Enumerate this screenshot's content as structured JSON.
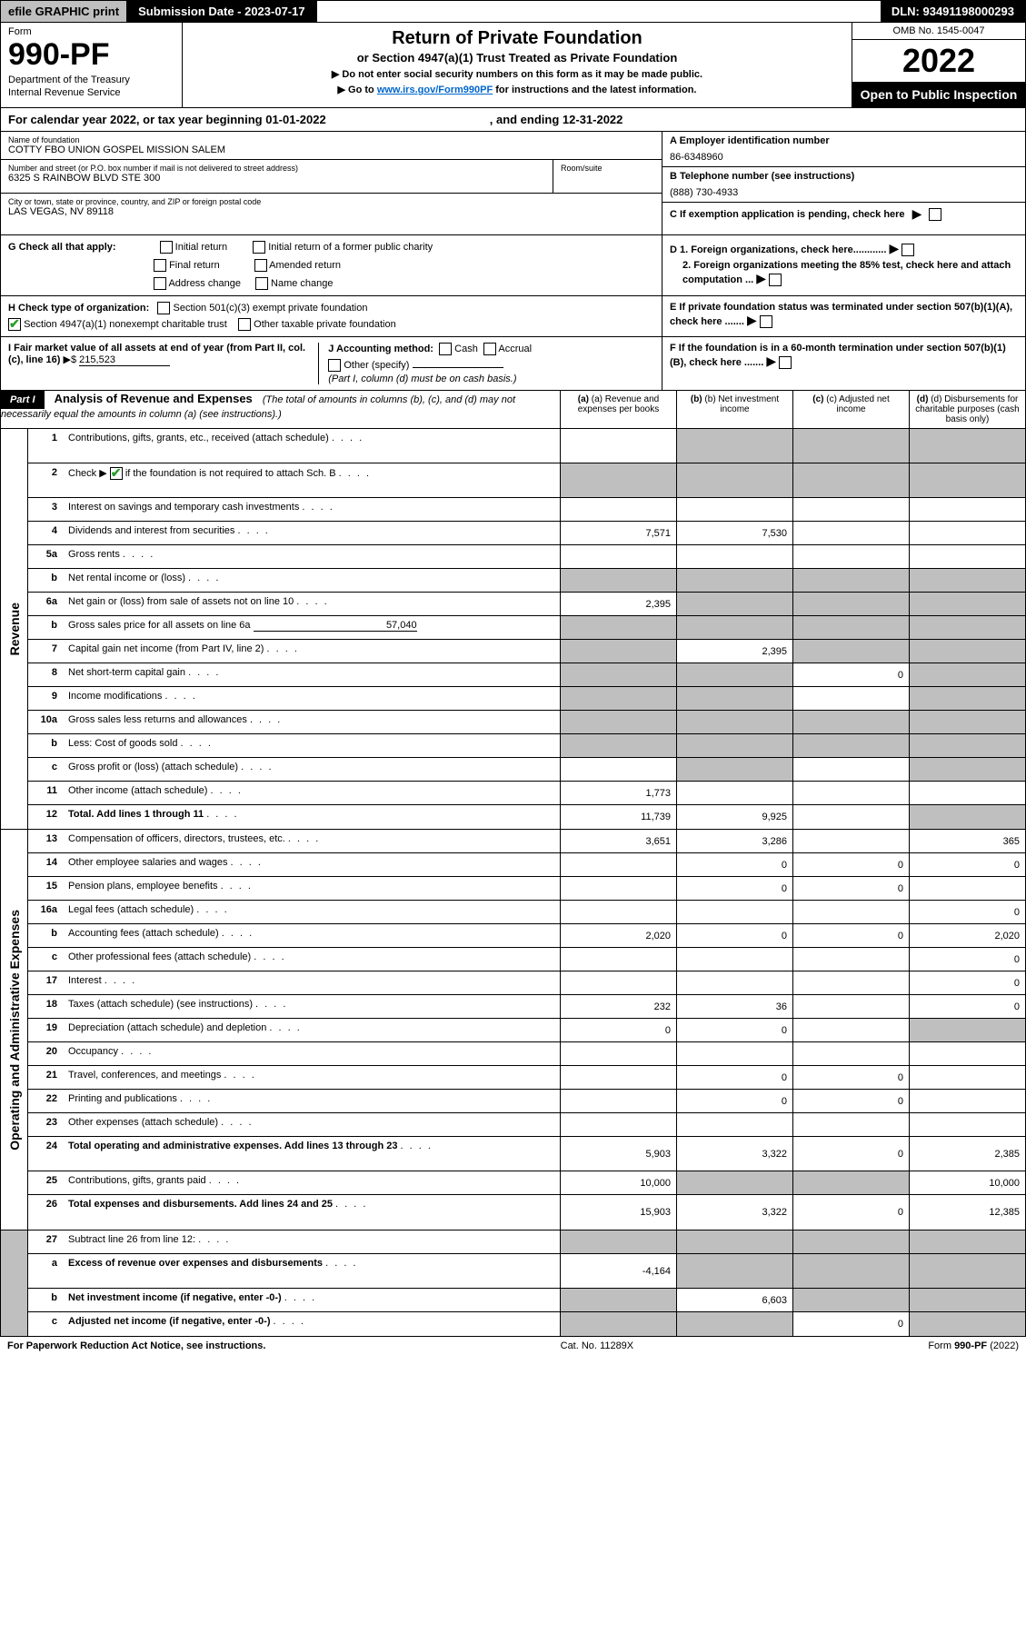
{
  "top": {
    "efile": "efile GRAPHIC print",
    "subdate": "Submission Date - 2023-07-17",
    "dln": "DLN: 93491198000293"
  },
  "header": {
    "form_label": "Form",
    "form_num": "990-PF",
    "dept": "Department of the Treasury",
    "irs": "Internal Revenue Service",
    "title": "Return of Private Foundation",
    "subtitle": "or Section 4947(a)(1) Trust Treated as Private Foundation",
    "instr1": "▶ Do not enter social security numbers on this form as it may be made public.",
    "instr2_pre": "▶ Go to ",
    "instr2_link": "www.irs.gov/Form990PF",
    "instr2_post": " for instructions and the latest information.",
    "omb": "OMB No. 1545-0047",
    "year": "2022",
    "open": "Open to Public Inspection"
  },
  "calyear": {
    "pre": "For calendar year 2022, or tax year beginning 01-01-2022",
    "end": ", and ending 12-31-2022"
  },
  "name": {
    "label": "Name of foundation",
    "value": "COTTY FBO UNION GOSPEL MISSION SALEM"
  },
  "ein": {
    "label": "A Employer identification number",
    "value": "86-6348960"
  },
  "addr": {
    "label": "Number and street (or P.O. box number if mail is not delivered to street address)",
    "value": "6325 S RAINBOW BLVD STE 300",
    "room_label": "Room/suite"
  },
  "phone": {
    "label": "B Telephone number (see instructions)",
    "value": "(888) 730-4933"
  },
  "city": {
    "label": "City or town, state or province, country, and ZIP or foreign postal code",
    "value": "LAS VEGAS, NV  89118"
  },
  "c_exempt": "C If exemption application is pending, check here",
  "g": {
    "label": "G Check all that apply:",
    "opts": [
      "Initial return",
      "Initial return of a former public charity",
      "Final return",
      "Amended return",
      "Address change",
      "Name change"
    ]
  },
  "d1": "D 1. Foreign organizations, check here............",
  "d2": "2. Foreign organizations meeting the 85% test, check here and attach computation ...",
  "e": "E  If private foundation status was terminated under section 507(b)(1)(A), check here .......",
  "h": {
    "label": "H Check type of organization:",
    "o1": "Section 501(c)(3) exempt private foundation",
    "o2": "Section 4947(a)(1) nonexempt charitable trust",
    "o3": "Other taxable private foundation"
  },
  "i": {
    "label": "I Fair market value of all assets at end of year (from Part II, col. (c), line 16)",
    "arrow": "▶$",
    "value": "215,523"
  },
  "j": {
    "label": "J Accounting method:",
    "cash": "Cash",
    "accrual": "Accrual",
    "other": "Other (specify)",
    "note": "(Part I, column (d) must be on cash basis.)"
  },
  "f": "F  If the foundation is in a 60-month termination under section 507(b)(1)(B), check here .......",
  "part1": {
    "hdr": "Part I",
    "title": "Analysis of Revenue and Expenses",
    "note": "(The total of amounts in columns (b), (c), and (d) may not necessarily equal the amounts in column (a) (see instructions).)",
    "cols": [
      "(a)  Revenue and expenses per books",
      "(b)  Net investment income",
      "(c)  Adjusted net income",
      "(d)  Disbursements for charitable purposes (cash basis only)"
    ]
  },
  "rev_label": "Revenue",
  "exp_label": "Operating and Administrative Expenses",
  "rows": {
    "r1": {
      "n": "1",
      "d": "Contributions, gifts, grants, etc., received (attach schedule)",
      "a": "",
      "b": "grey",
      "c": "grey",
      "e": "grey"
    },
    "r2": {
      "n": "2",
      "d_pre": "Check ▶ ",
      "d_post": " if the foundation is not required to attach Sch. B",
      "a": "grey",
      "b": "grey",
      "c": "grey",
      "e": "grey"
    },
    "r3": {
      "n": "3",
      "d": "Interest on savings and temporary cash investments"
    },
    "r4": {
      "n": "4",
      "d": "Dividends and interest from securities",
      "a": "7,571",
      "b": "7,530"
    },
    "r5a": {
      "n": "5a",
      "d": "Gross rents"
    },
    "r5b": {
      "n": "b",
      "d": "Net rental income or (loss)",
      "a": "grey",
      "b": "grey",
      "c": "grey",
      "e": "grey"
    },
    "r6a": {
      "n": "6a",
      "d": "Net gain or (loss) from sale of assets not on line 10",
      "a": "2,395",
      "b": "grey",
      "c": "grey",
      "e": "grey"
    },
    "r6b": {
      "n": "b",
      "d_pre": "Gross sales price for all assets on line 6a",
      "v": "57,040",
      "a": "grey",
      "b": "grey",
      "c": "grey",
      "e": "grey"
    },
    "r7": {
      "n": "7",
      "d": "Capital gain net income (from Part IV, line 2)",
      "a": "grey",
      "b": "2,395",
      "c": "grey",
      "e": "grey"
    },
    "r8": {
      "n": "8",
      "d": "Net short-term capital gain",
      "a": "grey",
      "b": "grey",
      "c": "0",
      "e": "grey"
    },
    "r9": {
      "n": "9",
      "d": "Income modifications",
      "a": "grey",
      "b": "grey",
      "e": "grey"
    },
    "r10a": {
      "n": "10a",
      "d": "Gross sales less returns and allowances",
      "a": "grey",
      "b": "grey",
      "c": "grey",
      "e": "grey"
    },
    "r10b": {
      "n": "b",
      "d": "Less: Cost of goods sold",
      "a": "grey",
      "b": "grey",
      "c": "grey",
      "e": "grey"
    },
    "r10c": {
      "n": "c",
      "d": "Gross profit or (loss) (attach schedule)",
      "a": "",
      "b": "grey",
      "e": "grey"
    },
    "r11": {
      "n": "11",
      "d": "Other income (attach schedule)",
      "a": "1,773"
    },
    "r12": {
      "n": "12",
      "d": "Total. Add lines 1 through 11",
      "a": "11,739",
      "b": "9,925",
      "e": "grey",
      "bold": true
    },
    "r13": {
      "n": "13",
      "d": "Compensation of officers, directors, trustees, etc.",
      "a": "3,651",
      "b": "3,286",
      "e": "365"
    },
    "r14": {
      "n": "14",
      "d": "Other employee salaries and wages",
      "b": "0",
      "c": "0",
      "e": "0"
    },
    "r15": {
      "n": "15",
      "d": "Pension plans, employee benefits",
      "b": "0",
      "c": "0"
    },
    "r16a": {
      "n": "16a",
      "d": "Legal fees (attach schedule)",
      "e": "0"
    },
    "r16b": {
      "n": "b",
      "d": "Accounting fees (attach schedule)",
      "a": "2,020",
      "b": "0",
      "c": "0",
      "e": "2,020"
    },
    "r16c": {
      "n": "c",
      "d": "Other professional fees (attach schedule)",
      "e": "0"
    },
    "r17": {
      "n": "17",
      "d": "Interest",
      "e": "0"
    },
    "r18": {
      "n": "18",
      "d": "Taxes (attach schedule) (see instructions)",
      "a": "232",
      "b": "36",
      "e": "0"
    },
    "r19": {
      "n": "19",
      "d": "Depreciation (attach schedule) and depletion",
      "a": "0",
      "b": "0",
      "e": "grey"
    },
    "r20": {
      "n": "20",
      "d": "Occupancy"
    },
    "r21": {
      "n": "21",
      "d": "Travel, conferences, and meetings",
      "b": "0",
      "c": "0"
    },
    "r22": {
      "n": "22",
      "d": "Printing and publications",
      "b": "0",
      "c": "0"
    },
    "r23": {
      "n": "23",
      "d": "Other expenses (attach schedule)"
    },
    "r24": {
      "n": "24",
      "d": "Total operating and administrative expenses. Add lines 13 through 23",
      "a": "5,903",
      "b": "3,322",
      "c": "0",
      "e": "2,385",
      "bold": true
    },
    "r25": {
      "n": "25",
      "d": "Contributions, gifts, grants paid",
      "a": "10,000",
      "b": "grey",
      "c": "grey",
      "e": "10,000"
    },
    "r26": {
      "n": "26",
      "d": "Total expenses and disbursements. Add lines 24 and 25",
      "a": "15,903",
      "b": "3,322",
      "c": "0",
      "e": "12,385",
      "bold": true
    },
    "r27": {
      "n": "27",
      "d": "Subtract line 26 from line 12:",
      "a": "grey",
      "b": "grey",
      "c": "grey",
      "e": "grey"
    },
    "r27a": {
      "n": "a",
      "d": "Excess of revenue over expenses and disbursements",
      "a": "-4,164",
      "b": "grey",
      "c": "grey",
      "e": "grey",
      "bold": true
    },
    "r27b": {
      "n": "b",
      "d": "Net investment income (if negative, enter -0-)",
      "a": "grey",
      "b": "6,603",
      "c": "grey",
      "e": "grey",
      "bold": true
    },
    "r27c": {
      "n": "c",
      "d": "Adjusted net income (if negative, enter -0-)",
      "a": "grey",
      "b": "grey",
      "c": "0",
      "e": "grey",
      "bold": true
    }
  },
  "footer": {
    "l": "For Paperwork Reduction Act Notice, see instructions.",
    "m": "Cat. No. 11289X",
    "r": "Form 990-PF (2022)"
  }
}
